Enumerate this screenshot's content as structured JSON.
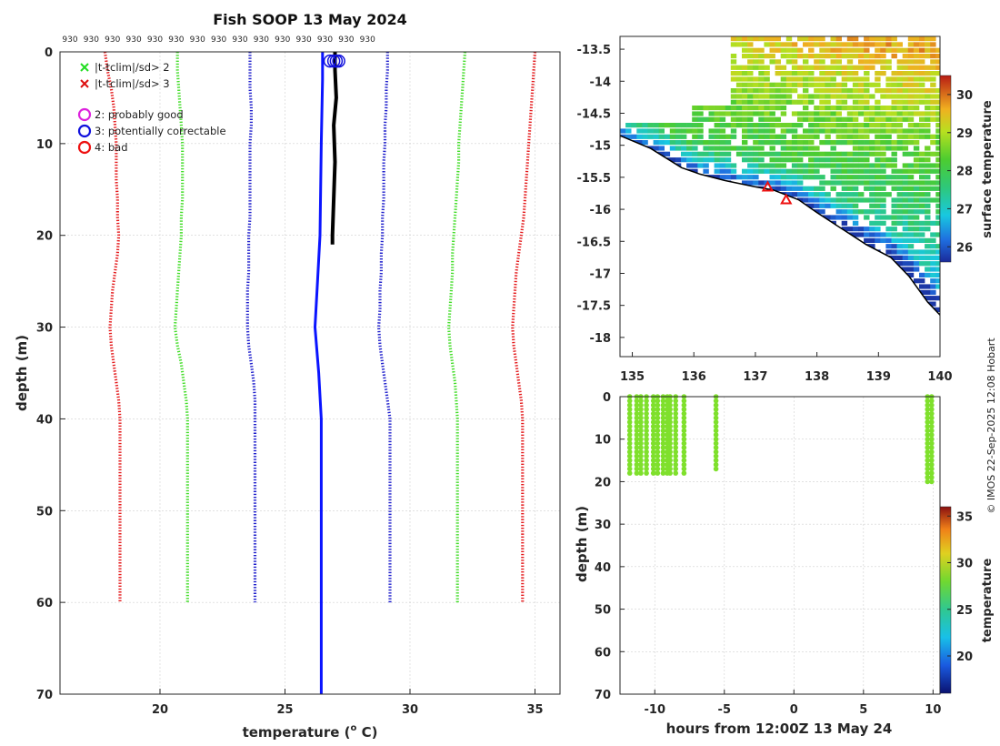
{
  "title": "Fish SOOP 13 May 2024",
  "credit": "© IMOS 22-Sep-2025 12:08 Hobart",
  "colors": {
    "red": "#e41a1c",
    "green": "#44dd2a",
    "blue": "#1f1fcc",
    "profile_blue": "#0a14ff",
    "profile_black": "#000000",
    "track": "#7fe02c",
    "land": "#ffffff",
    "grid": "#d0d0d0"
  },
  "chart_data": [
    {
      "id": "profile",
      "type": "line",
      "xlabel": "temperature (",
      "xlabel_sup": "o",
      "xlabel_end": " C)",
      "ylabel": "depth (m)",
      "xlim": [
        16,
        36
      ],
      "ylim": [
        0,
        70
      ],
      "xticks": [
        20,
        25,
        30,
        35
      ],
      "yticks": [
        0,
        10,
        20,
        30,
        40,
        50,
        60,
        70
      ],
      "top_labels": [
        "930",
        "930",
        "930",
        "930",
        "930",
        "930",
        "930",
        "930",
        "930",
        "930",
        "930",
        "930",
        "930",
        "930",
        "930"
      ],
      "top_label_temps": [
        16.4,
        17.25,
        18.1,
        18.95,
        19.8,
        20.65,
        21.5,
        22.35,
        23.2,
        24.05,
        24.9,
        25.75,
        26.6,
        27.45,
        28.3
      ],
      "legend": {
        "flags": [
          {
            "label": "|t-tclim|/sd> 2",
            "color": "#22dd22",
            "marker": "x"
          },
          {
            "label": "|t-tclim|/sd> 3",
            "color": "#dd1111",
            "marker": "x"
          }
        ],
        "qc": [
          {
            "label": "2: probably good",
            "color": "#dd22dd",
            "marker": "o"
          },
          {
            "label": "3: potentially correctable",
            "color": "#1111dd",
            "marker": "o"
          },
          {
            "label": "4: bad",
            "color": "#ee1111",
            "marker": "o"
          }
        ]
      },
      "clim_depths": [
        0,
        2,
        4,
        6,
        8,
        10,
        12,
        14,
        16,
        18,
        20,
        22,
        24,
        26,
        28,
        30,
        32,
        34,
        36,
        38,
        40,
        45,
        50,
        55,
        60
      ],
      "clim_series": [
        {
          "name": "-3sd",
          "color": "red",
          "values": [
            17.8,
            17.9,
            18.05,
            18.15,
            18.2,
            18.25,
            18.25,
            18.25,
            18.3,
            18.3,
            18.35,
            18.3,
            18.2,
            18.1,
            18.05,
            18.0,
            18.05,
            18.15,
            18.25,
            18.35,
            18.4,
            18.4,
            18.4,
            18.4,
            18.4
          ]
        },
        {
          "name": "-2sd",
          "color": "green",
          "values": [
            20.7,
            20.7,
            20.75,
            20.8,
            20.85,
            20.9,
            20.9,
            20.9,
            20.9,
            20.85,
            20.85,
            20.8,
            20.75,
            20.7,
            20.65,
            20.6,
            20.7,
            20.85,
            20.95,
            21.05,
            21.1,
            21.1,
            21.1,
            21.1,
            21.1
          ]
        },
        {
          "name": "-1sd",
          "color": "blue",
          "values": [
            23.6,
            23.6,
            23.6,
            23.65,
            23.65,
            23.6,
            23.6,
            23.6,
            23.6,
            23.6,
            23.55,
            23.55,
            23.55,
            23.5,
            23.5,
            23.5,
            23.55,
            23.65,
            23.75,
            23.8,
            23.8,
            23.8,
            23.8,
            23.8,
            23.8
          ]
        },
        {
          "name": "+1sd",
          "color": "blue",
          "values": [
            29.1,
            29.1,
            29.05,
            29.05,
            29.0,
            29.0,
            28.95,
            28.95,
            28.95,
            28.9,
            28.9,
            28.85,
            28.85,
            28.8,
            28.8,
            28.75,
            28.8,
            28.9,
            29.0,
            29.1,
            29.2,
            29.2,
            29.2,
            29.2,
            29.2
          ]
        },
        {
          "name": "+2sd",
          "color": "green",
          "values": [
            32.2,
            32.15,
            32.1,
            32.05,
            32.0,
            31.95,
            31.95,
            31.9,
            31.85,
            31.8,
            31.75,
            31.7,
            31.7,
            31.65,
            31.6,
            31.55,
            31.6,
            31.7,
            31.8,
            31.85,
            31.9,
            31.9,
            31.9,
            31.9,
            31.9
          ]
        },
        {
          "name": "+3sd",
          "color": "red",
          "values": [
            35.0,
            34.95,
            34.9,
            34.85,
            34.8,
            34.75,
            34.7,
            34.65,
            34.6,
            34.55,
            34.45,
            34.35,
            34.25,
            34.2,
            34.15,
            34.1,
            34.15,
            34.25,
            34.35,
            34.45,
            34.5,
            34.5,
            34.5,
            34.5,
            34.5
          ]
        }
      ],
      "profile_blue": {
        "depths": [
          0,
          3,
          10,
          20,
          25,
          30,
          35,
          40,
          50,
          60,
          70
        ],
        "temps": [
          26.5,
          26.5,
          26.45,
          26.4,
          26.3,
          26.2,
          26.35,
          26.45,
          26.45,
          26.45,
          26.45
        ]
      },
      "profile_black": {
        "depths": [
          0,
          2,
          5,
          8,
          12,
          16,
          20,
          21
        ],
        "temps": [
          27.0,
          27.0,
          27.05,
          26.95,
          27.0,
          26.95,
          26.9,
          26.9
        ]
      },
      "qc_markers": {
        "depth": 1.0,
        "temps": [
          26.8,
          26.95,
          27.05,
          27.15
        ]
      }
    },
    {
      "id": "map",
      "type": "heatmap",
      "xlim": [
        134.8,
        140.0
      ],
      "ylim": [
        -18.3,
        -13.3
      ],
      "xticks": [
        135,
        136,
        137,
        138,
        139,
        140
      ],
      "yticks": [
        -13.5,
        -14,
        -14.5,
        -15,
        -15.5,
        -16,
        -16.5,
        -17,
        -17.5,
        -18
      ],
      "colorbar": {
        "label": "surface temperature",
        "range": [
          25.6,
          30.5
        ],
        "ticks": [
          26,
          27,
          28,
          29,
          30
        ]
      },
      "coast_lon": [
        134.8,
        135.3,
        135.8,
        136.1,
        136.5,
        137.0,
        137.3,
        137.7,
        138.0,
        138.4,
        138.8,
        139.2,
        139.5,
        139.8,
        140.0
      ],
      "coast_lat": [
        -14.85,
        -15.05,
        -15.35,
        -15.45,
        -15.55,
        -15.65,
        -15.7,
        -15.85,
        -16.05,
        -16.3,
        -16.55,
        -16.75,
        -17.05,
        -17.45,
        -17.65
      ],
      "triangles": [
        {
          "lon": 137.2,
          "lat": -15.65
        },
        {
          "lon": 137.5,
          "lat": -15.85
        }
      ]
    },
    {
      "id": "timeseries",
      "type": "scatter",
      "xlabel": "hours from 12:00Z 13 May 24",
      "ylabel": "depth (m)",
      "xlim": [
        -12.5,
        10.5
      ],
      "ylim": [
        0,
        70
      ],
      "xticks": [
        -10,
        -5,
        0,
        5,
        10
      ],
      "yticks": [
        0,
        10,
        20,
        30,
        40,
        50,
        60,
        70
      ],
      "colorbar": {
        "label": "temperature",
        "range": [
          16,
          36
        ],
        "ticks": [
          20,
          25,
          30,
          35
        ]
      },
      "casts": [
        {
          "hours": -11.8,
          "maxdepth": 18
        },
        {
          "hours": -11.3,
          "maxdepth": 18
        },
        {
          "hours": -11.0,
          "maxdepth": 18
        },
        {
          "hours": -10.6,
          "maxdepth": 18
        },
        {
          "hours": -10.1,
          "maxdepth": 18
        },
        {
          "hours": -9.8,
          "maxdepth": 18
        },
        {
          "hours": -9.4,
          "maxdepth": 18
        },
        {
          "hours": -9.1,
          "maxdepth": 18
        },
        {
          "hours": -8.9,
          "maxdepth": 18
        },
        {
          "hours": -8.5,
          "maxdepth": 18
        },
        {
          "hours": -7.9,
          "maxdepth": 18
        },
        {
          "hours": -5.6,
          "maxdepth": 17
        },
        {
          "hours": 9.6,
          "maxdepth": 20
        },
        {
          "hours": 9.9,
          "maxdepth": 20
        }
      ]
    }
  ]
}
